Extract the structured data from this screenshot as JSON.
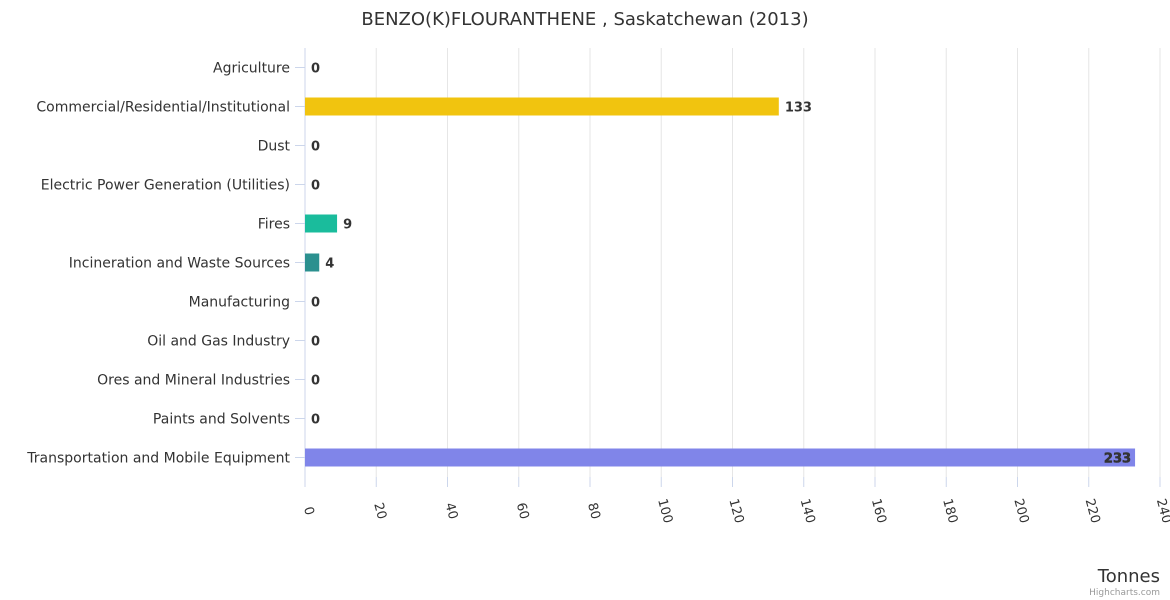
{
  "chart_data": {
    "type": "bar",
    "orientation": "horizontal",
    "title": "BENZO(K)FLOURANTHENE , Saskatchewan (2013)",
    "xlabel": "",
    "ylabel": "Tonnes",
    "credit": "Highcharts.com",
    "categories": [
      "Agriculture",
      "Commercial/Residential/Institutional",
      "Dust",
      "Electric Power Generation (Utilities)",
      "Fires",
      "Incineration and Waste Sources",
      "Manufacturing",
      "Oil and Gas Industry",
      "Ores and Mineral Industries",
      "Paints and Solvents",
      "Transportation and Mobile Equipment"
    ],
    "values": [
      0,
      133,
      0,
      0,
      9,
      4,
      0,
      0,
      0,
      0,
      233
    ],
    "colors": [
      "#7cb5ec",
      "#f1c40f",
      "#434348",
      "#90ed7d",
      "#1abc9c",
      "#2b908f",
      "#f7a35c",
      "#8085e9",
      "#f15c80",
      "#e4d354",
      "#8085e9"
    ],
    "ylim": [
      0,
      240
    ],
    "ticks": [
      0,
      20,
      40,
      60,
      80,
      100,
      120,
      140,
      160,
      180,
      200,
      220,
      240
    ],
    "grid": true,
    "legend": "none"
  }
}
